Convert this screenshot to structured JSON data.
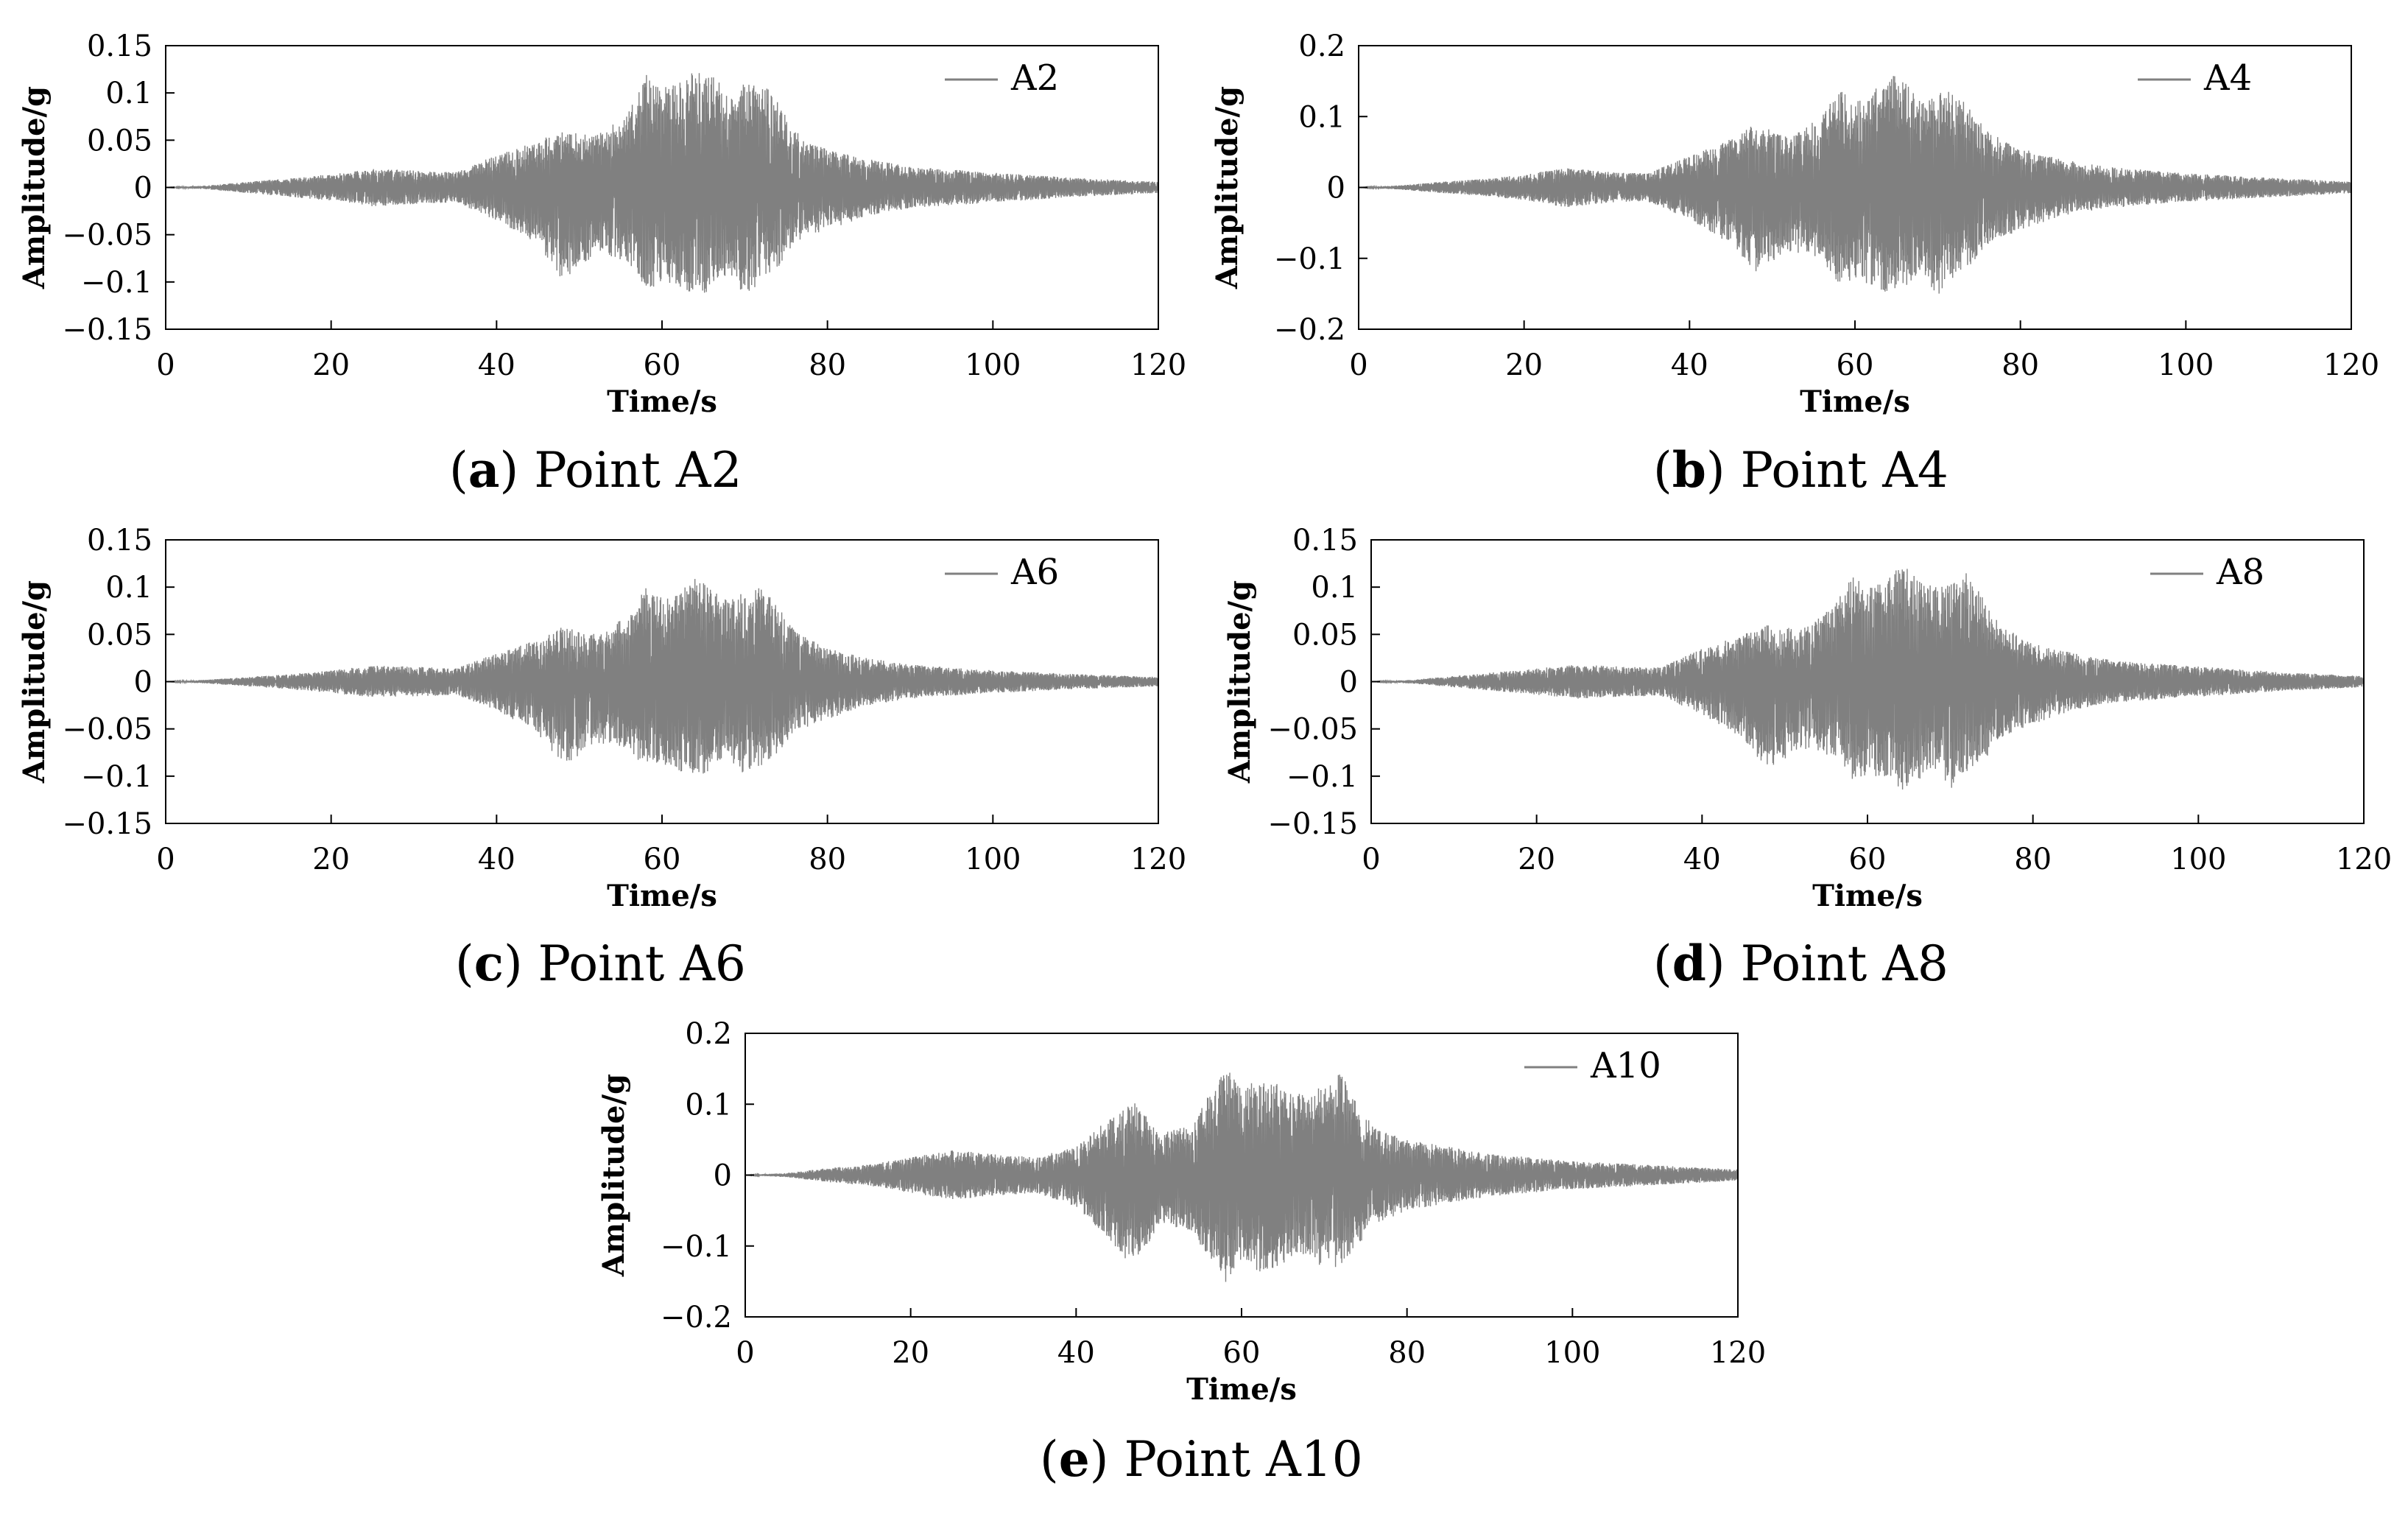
{
  "chart_data": [
    {
      "type": "line",
      "panel": "a",
      "caption": "Point A2",
      "xlabel": "Time/s",
      "ylabel": "Amplitude/g",
      "xlim": [
        0,
        120
      ],
      "ylim": [
        -0.15,
        0.15
      ],
      "x_ticks": [
        "0",
        "20",
        "40",
        "60",
        "80",
        "100",
        "120"
      ],
      "y_ticks": [
        "0.15",
        "0.1",
        "0.05",
        "0",
        "−0.05",
        "−0.1",
        "−0.15"
      ],
      "legend": "top-right",
      "grid": false,
      "series": [
        {
          "name": "A2",
          "color": "#808080",
          "envelope_t": [
            0,
            5,
            10,
            15,
            20,
            25,
            30,
            35,
            40,
            45,
            48,
            52,
            56,
            58,
            60,
            62,
            64,
            66,
            68,
            70,
            72,
            74,
            76,
            80,
            85,
            90,
            100,
            110,
            120
          ],
          "envelope_max": [
            0.0,
            0.002,
            0.006,
            0.01,
            0.014,
            0.02,
            0.018,
            0.016,
            0.035,
            0.05,
            0.06,
            0.055,
            0.08,
            0.12,
            0.105,
            0.11,
            0.125,
            0.12,
            0.1,
            0.11,
            0.115,
            0.09,
            0.06,
            0.04,
            0.03,
            0.022,
            0.016,
            0.01,
            0.006
          ],
          "envelope_min": [
            0.0,
            -0.002,
            -0.006,
            -0.01,
            -0.014,
            -0.02,
            -0.018,
            -0.016,
            -0.035,
            -0.06,
            -0.1,
            -0.07,
            -0.08,
            -0.11,
            -0.1,
            -0.105,
            -0.115,
            -0.11,
            -0.09,
            -0.115,
            -0.1,
            -0.085,
            -0.06,
            -0.045,
            -0.03,
            -0.022,
            -0.016,
            -0.01,
            -0.006
          ]
        }
      ]
    },
    {
      "type": "line",
      "panel": "b",
      "caption": "Point A4",
      "xlabel": "Time/s",
      "ylabel": "Amplitude/g",
      "xlim": [
        0,
        120
      ],
      "ylim": [
        -0.2,
        0.2
      ],
      "x_ticks": [
        "0",
        "20",
        "40",
        "60",
        "80",
        "100",
        "120"
      ],
      "y_ticks": [
        "0.2",
        "0.1",
        "0",
        "−0.1",
        "−0.2"
      ],
      "legend": "top-right",
      "grid": false,
      "series": [
        {
          "name": "A4",
          "color": "#808080",
          "envelope_t": [
            0,
            5,
            10,
            15,
            20,
            25,
            30,
            35,
            40,
            45,
            48,
            52,
            56,
            58,
            60,
            62,
            64,
            66,
            68,
            70,
            72,
            74,
            76,
            80,
            85,
            90,
            100,
            110,
            120
          ],
          "envelope_max": [
            0.0,
            0.003,
            0.008,
            0.012,
            0.018,
            0.028,
            0.022,
            0.02,
            0.045,
            0.07,
            0.09,
            0.07,
            0.1,
            0.14,
            0.12,
            0.13,
            0.165,
            0.15,
            0.12,
            0.13,
            0.15,
            0.11,
            0.08,
            0.055,
            0.04,
            0.03,
            0.02,
            0.014,
            0.008
          ],
          "envelope_min": [
            0.0,
            -0.003,
            -0.008,
            -0.012,
            -0.018,
            -0.028,
            -0.022,
            -0.02,
            -0.045,
            -0.08,
            -0.12,
            -0.09,
            -0.1,
            -0.14,
            -0.13,
            -0.14,
            -0.15,
            -0.14,
            -0.12,
            -0.155,
            -0.13,
            -0.11,
            -0.08,
            -0.06,
            -0.04,
            -0.03,
            -0.02,
            -0.014,
            -0.008
          ]
        }
      ]
    },
    {
      "type": "line",
      "panel": "c",
      "caption": "Point A6",
      "xlabel": "Time/s",
      "ylabel": "Amplitude/g",
      "xlim": [
        0,
        120
      ],
      "ylim": [
        -0.15,
        0.15
      ],
      "x_ticks": [
        "0",
        "20",
        "40",
        "60",
        "80",
        "100",
        "120"
      ],
      "y_ticks": [
        "0.15",
        "0.1",
        "0.05",
        "0",
        "−0.05",
        "−0.1",
        "−0.15"
      ],
      "legend": "top-right",
      "grid": false,
      "series": [
        {
          "name": "A6",
          "color": "#808080",
          "envelope_t": [
            0,
            5,
            10,
            15,
            20,
            25,
            30,
            35,
            40,
            45,
            48,
            52,
            56,
            58,
            60,
            62,
            64,
            66,
            68,
            70,
            72,
            74,
            76,
            80,
            85,
            90,
            100,
            110,
            120
          ],
          "envelope_max": [
            0.0,
            0.002,
            0.005,
            0.008,
            0.012,
            0.017,
            0.016,
            0.014,
            0.03,
            0.045,
            0.06,
            0.05,
            0.07,
            0.1,
            0.09,
            0.095,
            0.11,
            0.1,
            0.085,
            0.095,
            0.1,
            0.08,
            0.055,
            0.035,
            0.025,
            0.018,
            0.012,
            0.008,
            0.005
          ],
          "envelope_min": [
            0.0,
            -0.002,
            -0.005,
            -0.008,
            -0.012,
            -0.017,
            -0.016,
            -0.014,
            -0.03,
            -0.055,
            -0.09,
            -0.065,
            -0.07,
            -0.095,
            -0.09,
            -0.095,
            -0.1,
            -0.095,
            -0.08,
            -0.1,
            -0.09,
            -0.075,
            -0.055,
            -0.04,
            -0.025,
            -0.018,
            -0.012,
            -0.008,
            -0.005
          ]
        }
      ]
    },
    {
      "type": "line",
      "panel": "d",
      "caption": "Point A8",
      "xlabel": "Time/s",
      "ylabel": "Amplitude/g",
      "xlim": [
        0,
        120
      ],
      "ylim": [
        -0.15,
        0.15
      ],
      "x_ticks": [
        "0",
        "20",
        "40",
        "60",
        "80",
        "100",
        "120"
      ],
      "y_ticks": [
        "0.15",
        "0.1",
        "0.05",
        "0",
        "−0.05",
        "−0.1",
        "−0.15"
      ],
      "legend": "top-right",
      "grid": false,
      "series": [
        {
          "name": "A8",
          "color": "#808080",
          "envelope_t": [
            0,
            5,
            10,
            15,
            20,
            25,
            30,
            35,
            40,
            45,
            48,
            52,
            56,
            58,
            60,
            62,
            64,
            66,
            68,
            70,
            72,
            74,
            76,
            80,
            85,
            90,
            100,
            110,
            120
          ],
          "envelope_max": [
            0.0,
            0.002,
            0.006,
            0.01,
            0.014,
            0.018,
            0.016,
            0.015,
            0.035,
            0.05,
            0.06,
            0.055,
            0.08,
            0.115,
            0.1,
            0.105,
            0.125,
            0.115,
            0.1,
            0.105,
            0.115,
            0.09,
            0.06,
            0.04,
            0.03,
            0.022,
            0.016,
            0.01,
            0.006
          ],
          "envelope_min": [
            0.0,
            -0.002,
            -0.006,
            -0.01,
            -0.014,
            -0.018,
            -0.016,
            -0.015,
            -0.035,
            -0.06,
            -0.095,
            -0.07,
            -0.08,
            -0.105,
            -0.1,
            -0.1,
            -0.115,
            -0.11,
            -0.09,
            -0.115,
            -0.1,
            -0.085,
            -0.06,
            -0.045,
            -0.03,
            -0.022,
            -0.016,
            -0.01,
            -0.006
          ]
        }
      ]
    },
    {
      "type": "line",
      "panel": "e",
      "caption": "Point A10",
      "xlabel": "Time/s",
      "ylabel": "Amplitude/g",
      "xlim": [
        0,
        120
      ],
      "ylim": [
        -0.2,
        0.2
      ],
      "x_ticks": [
        "0",
        "20",
        "40",
        "60",
        "80",
        "100",
        "120"
      ],
      "y_ticks": [
        "0.2",
        "0.1",
        "0",
        "−0.1",
        "−0.2"
      ],
      "legend": "top-right",
      "grid": false,
      "series": [
        {
          "name": "A10",
          "color": "#808080",
          "envelope_t": [
            0,
            5,
            10,
            15,
            20,
            25,
            30,
            35,
            40,
            44,
            47,
            50,
            54,
            58,
            60,
            62,
            64,
            66,
            68,
            70,
            72,
            74,
            76,
            80,
            85,
            90,
            100,
            110,
            120
          ],
          "envelope_max": [
            0.0,
            0.003,
            0.01,
            0.015,
            0.025,
            0.035,
            0.03,
            0.025,
            0.04,
            0.08,
            0.105,
            0.06,
            0.07,
            0.155,
            0.12,
            0.14,
            0.13,
            0.12,
            0.11,
            0.13,
            0.145,
            0.1,
            0.07,
            0.05,
            0.04,
            0.03,
            0.02,
            0.014,
            0.008
          ],
          "envelope_min": [
            0.0,
            -0.003,
            -0.01,
            -0.015,
            -0.025,
            -0.035,
            -0.03,
            -0.025,
            -0.045,
            -0.09,
            -0.135,
            -0.07,
            -0.08,
            -0.155,
            -0.12,
            -0.14,
            -0.13,
            -0.12,
            -0.11,
            -0.135,
            -0.13,
            -0.1,
            -0.07,
            -0.05,
            -0.04,
            -0.03,
            -0.02,
            -0.014,
            -0.008
          ]
        }
      ]
    }
  ]
}
